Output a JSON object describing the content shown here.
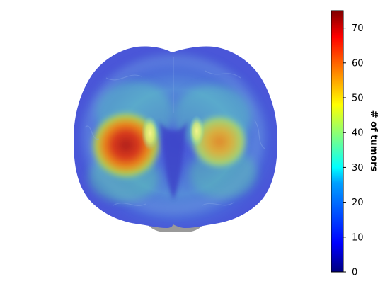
{
  "image": {
    "subject": "brain",
    "overlay_colormap": "jet"
  },
  "colorbar": {
    "label": "# of tumors",
    "min": 0,
    "max": 75,
    "ticks": [
      "0",
      "10",
      "20",
      "30",
      "40",
      "50",
      "60",
      "70"
    ],
    "tick_values": [
      0,
      10,
      20,
      30,
      40,
      50,
      60,
      70
    ],
    "colors": [
      "#00007f",
      "#0000ff",
      "#007fff",
      "#00ffff",
      "#7fff7f",
      "#ffff00",
      "#ff7f00",
      "#ff0000",
      "#7f0000"
    ]
  }
}
